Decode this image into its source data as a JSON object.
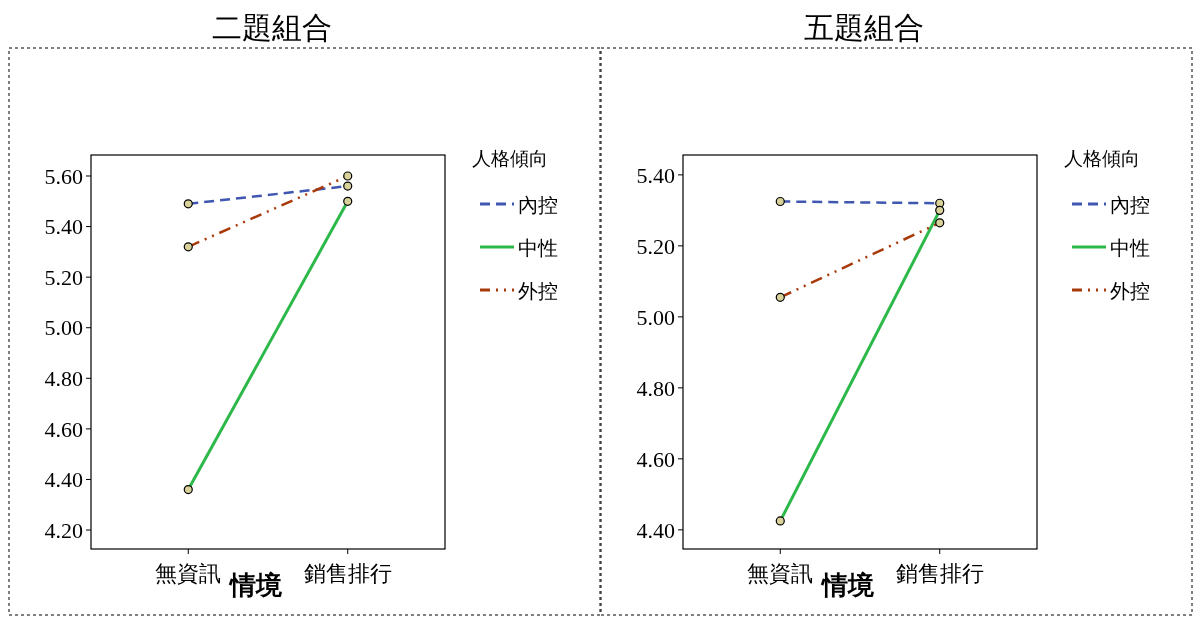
{
  "chart_data": [
    {
      "type": "line",
      "title": "二題組合",
      "xlabel": "情境",
      "legend_title": "人格傾向",
      "categories": [
        "無資訊",
        "銷售排行"
      ],
      "ylim": [
        4.125,
        5.683
      ],
      "yticks": [
        {
          "value": 4.2,
          "label": "4.20"
        },
        {
          "value": 4.4,
          "label": "4.40"
        },
        {
          "value": 4.6,
          "label": "4.60"
        },
        {
          "value": 4.8,
          "label": "4.80"
        },
        {
          "value": 5.0,
          "label": "5.00"
        },
        {
          "value": 5.2,
          "label": "5.20"
        },
        {
          "value": 5.4,
          "label": "5.40"
        },
        {
          "value": 5.6,
          "label": "5.60"
        }
      ],
      "legend": "right",
      "marker": "circle",
      "grid": false,
      "series": [
        {
          "name": "內控",
          "color": "#3f57b0",
          "line_style": "dashed",
          "values": [
            5.49,
            5.56
          ]
        },
        {
          "name": "中性",
          "color": "#2db84a",
          "line_style": "solid",
          "values": [
            4.36,
            5.5
          ]
        },
        {
          "name": "外控",
          "color": "#a83a0a",
          "line_style": "dotted",
          "values": [
            5.32,
            5.6
          ]
        }
      ]
    },
    {
      "type": "line",
      "title": "五題組合",
      "xlabel": "情境",
      "legend_title": "人格傾向",
      "categories": [
        "無資訊",
        "銷售排行"
      ],
      "ylim": [
        4.346,
        5.456
      ],
      "yticks": [
        {
          "value": 4.4,
          "label": "4.40"
        },
        {
          "value": 4.6,
          "label": "4.60"
        },
        {
          "value": 4.8,
          "label": "4.80"
        },
        {
          "value": 5.0,
          "label": "5.00"
        },
        {
          "value": 5.2,
          "label": "5.20"
        },
        {
          "value": 5.4,
          "label": "5.40"
        }
      ],
      "legend": "right",
      "marker": "circle",
      "grid": false,
      "series": [
        {
          "name": "內控",
          "color": "#3f57b0",
          "line_style": "dashed",
          "values": [
            5.325,
            5.32
          ]
        },
        {
          "name": "中性",
          "color": "#2db84a",
          "line_style": "solid",
          "values": [
            4.425,
            5.3
          ]
        },
        {
          "name": "外控",
          "color": "#a83a0a",
          "line_style": "dotted",
          "values": [
            5.055,
            5.265
          ]
        }
      ]
    }
  ]
}
